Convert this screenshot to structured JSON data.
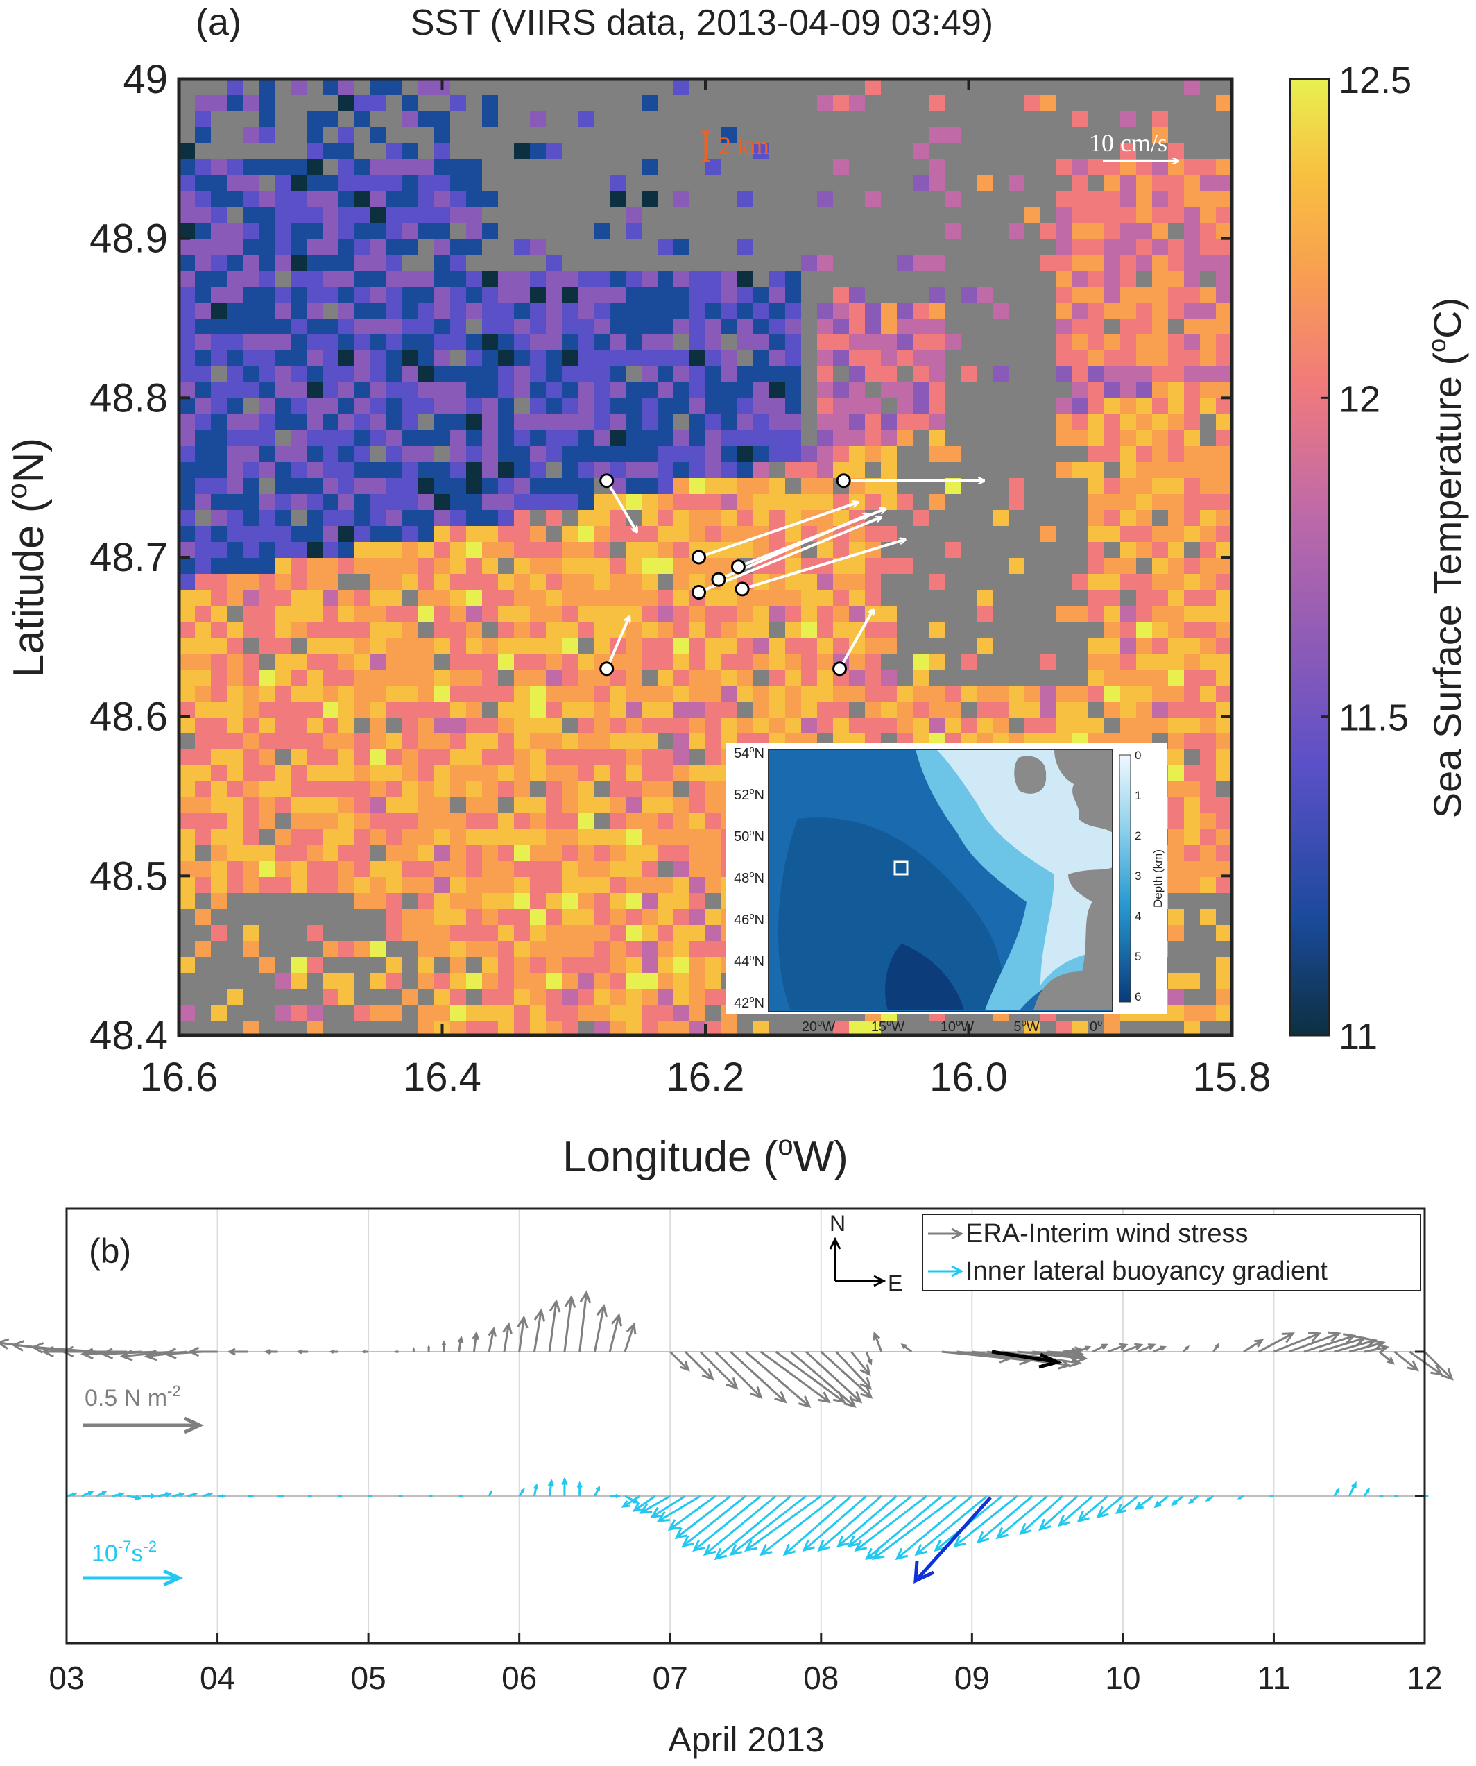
{
  "panel_a": {
    "label": "(a)",
    "title": "SST (VIIRS data, 2013-04-09 03:49)",
    "xlabel": "Longitude (",
    "xlabel_sup": "o",
    "xlabel_end": "W)",
    "ylabel": "Latitude (",
    "ylabel_sup": "o",
    "ylabel_end": "N)",
    "scale_bar_label": "2 km",
    "velocity_scale_label": "10 cm/s",
    "colorbar": {
      "label": "Sea Surface Temperature (",
      "label_sup": "o",
      "label_end": "C)",
      "ticks": [
        "12.5",
        "12",
        "11.5",
        "11"
      ],
      "tick_values": [
        12.5,
        12,
        11.5,
        11
      ],
      "range": [
        11,
        12.5
      ]
    },
    "inset": {
      "lat_labels": [
        "54",
        "52",
        "50",
        "48",
        "46",
        "44",
        "42"
      ],
      "lat_suffix": "N",
      "lon_labels": [
        "20",
        "15",
        "10",
        "5",
        "0"
      ],
      "lon_suffix": "W",
      "depth_ticks": [
        "0",
        "1",
        "2",
        "3",
        "4",
        "5",
        "6"
      ],
      "depth_label": "Depth (km)"
    }
  },
  "panel_b": {
    "label": "(b)",
    "legend": {
      "wind": "ERA-Interim wind stress",
      "buoyancy": "Inner lateral buoyancy gradient",
      "compass_n": "N",
      "compass_e": "E"
    },
    "wind_scale_label": "0.5 N m",
    "wind_scale_sup": "-2",
    "buoy_scale_label": "10",
    "buoy_scale_sup": "-7",
    "buoy_scale_end": "s",
    "buoy_scale_sup2": "-2",
    "xlabel": "April 2013",
    "xticks": [
      "03",
      "04",
      "05",
      "06",
      "07",
      "08",
      "09",
      "10",
      "11",
      "12"
    ]
  },
  "chart_data": [
    {
      "type": "heatmap",
      "title": "SST (VIIRS data, 2013-04-09 03:49)",
      "xlabel": "Longitude (oW)",
      "ylabel": "Latitude (oN)",
      "xlim": [
        16.6,
        15.8
      ],
      "ylim": [
        48.4,
        49.0
      ],
      "xticks": [
        16.6,
        16.4,
        16.2,
        16.0,
        15.8
      ],
      "yticks": [
        48.4,
        48.5,
        48.6,
        48.7,
        48.8,
        48.9,
        49.0
      ],
      "xtick_labels": [
        "16.6",
        "16.4",
        "16.2",
        "16.0",
        "15.8"
      ],
      "ytick_labels": [
        "48.4",
        "48.5",
        "48.6",
        "48.7",
        "48.8",
        "48.9",
        "49"
      ],
      "color_range": [
        11,
        12.5
      ],
      "colormap": [
        "#0d3040",
        "#1a4a9a",
        "#5a50c8",
        "#8a5ab8",
        "#c06aa8",
        "#f07a7c",
        "#f8a050",
        "#f8c040",
        "#e8f050"
      ],
      "missing_color": "#808080",
      "drifters": [
        {
          "lon": 16.275,
          "lat": 48.748,
          "u": 4.0,
          "v": -6.8
        },
        {
          "lon": 16.095,
          "lat": 48.748,
          "u": 18.7,
          "v": 0.0
        },
        {
          "lon": 16.205,
          "lat": 48.7,
          "u": 21.2,
          "v": 7.3
        },
        {
          "lon": 16.19,
          "lat": 48.686,
          "u": 20.0,
          "v": 8.7
        },
        {
          "lon": 16.175,
          "lat": 48.694,
          "u": 19.6,
          "v": 7.7
        },
        {
          "lon": 16.205,
          "lat": 48.678,
          "u": 24.3,
          "v": 10.0
        },
        {
          "lon": 16.172,
          "lat": 48.68,
          "u": 21.7,
          "v": 6.6
        },
        {
          "lon": 16.275,
          "lat": 48.63,
          "u": 3.0,
          "v": 6.9
        },
        {
          "lon": 16.098,
          "lat": 48.63,
          "u": 4.5,
          "v": 7.9
        }
      ]
    },
    {
      "type": "quiver",
      "xlabel": "April 2013",
      "xlim": [
        3,
        12
      ],
      "xtick_labels": [
        "03",
        "04",
        "05",
        "06",
        "07",
        "08",
        "09",
        "10",
        "11",
        "12"
      ],
      "series": [
        {
          "name": "ERA-Interim wind stress",
          "color": "#7f7f7f",
          "scale_value": "0.5 N m-2",
          "times": [
            3.0,
            3.1,
            3.2,
            3.3,
            3.4,
            3.5,
            3.6,
            3.7,
            3.8,
            3.9,
            4.0,
            4.2,
            4.4,
            4.6,
            4.8,
            5.0,
            5.2,
            5.3,
            5.4,
            5.5,
            5.6,
            5.7,
            5.8,
            5.9,
            6.0,
            6.1,
            6.2,
            6.3,
            6.4,
            6.5,
            6.6,
            6.7,
            6.8,
            7.0,
            7.1,
            7.2,
            7.3,
            7.4,
            7.5,
            7.6,
            7.7,
            7.8,
            7.9,
            8.0,
            8.1,
            8.2,
            8.3,
            8.4,
            8.6,
            8.8,
            8.9,
            9.0,
            9.1,
            9.2,
            9.3,
            9.4,
            9.5,
            9.6,
            9.7,
            9.8,
            9.9,
            10.0,
            10.1,
            10.2,
            10.4,
            10.6,
            10.8,
            10.9,
            11.0,
            11.1,
            11.2,
            11.3,
            11.4,
            11.5,
            11.6,
            11.7,
            11.8,
            11.9,
            12.0
          ],
          "u": [
            -0.3,
            -0.3,
            -0.28,
            -0.3,
            -0.28,
            -0.26,
            -0.24,
            -0.22,
            -0.18,
            -0.16,
            -0.12,
            -0.08,
            -0.05,
            -0.04,
            -0.03,
            -0.02,
            -0.01,
            0.0,
            0.0,
            0.0,
            0.01,
            0.01,
            0.02,
            0.02,
            0.02,
            0.03,
            0.03,
            0.03,
            0.03,
            0.04,
            0.04,
            0.04,
            0.0,
            0.08,
            0.12,
            0.16,
            0.2,
            0.24,
            0.28,
            0.3,
            0.3,
            0.28,
            0.24,
            0.22,
            0.15,
            0.08,
            0.02,
            -0.03,
            -0.04,
            0.3,
            0.32,
            0.35,
            0.36,
            0.34,
            0.3,
            0.22,
            0.15,
            0.08,
            0.05,
            0.06,
            0.08,
            0.08,
            0.07,
            0.05,
            0.02,
            0.02,
            0.08,
            0.15,
            0.2,
            0.22,
            0.22,
            0.2,
            0.18,
            0.15,
            0.1,
            0.06,
            0.1,
            0.14,
            0.12
          ],
          "v": [
            0.04,
            0.03,
            0.02,
            0.0,
            0.0,
            -0.01,
            -0.01,
            -0.02,
            -0.02,
            -0.01,
            0.0,
            0.0,
            0.0,
            0.0,
            0.0,
            0.0,
            0.0,
            0.01,
            0.02,
            0.04,
            0.06,
            0.08,
            0.1,
            0.12,
            0.15,
            0.18,
            0.22,
            0.24,
            0.26,
            0.2,
            0.16,
            0.12,
            0.0,
            -0.08,
            -0.12,
            -0.16,
            -0.2,
            -0.22,
            -0.24,
            -0.22,
            -0.22,
            -0.24,
            -0.22,
            -0.2,
            -0.16,
            -0.1,
            -0.05,
            0.08,
            0.03,
            -0.03,
            -0.04,
            -0.05,
            -0.06,
            -0.05,
            -0.03,
            -0.02,
            -0.01,
            0.01,
            0.02,
            0.03,
            0.03,
            0.03,
            0.03,
            0.02,
            0.02,
            0.03,
            0.05,
            0.08,
            0.08,
            0.08,
            0.07,
            0.06,
            0.05,
            0.04,
            0.02,
            -0.05,
            -0.08,
            -0.1,
            -0.12
          ]
        },
        {
          "name": "Inner lateral buoyancy gradient",
          "color": "#22c8f0",
          "scale_value": "10-7 s-2",
          "times": [
            3.0,
            3.1,
            3.2,
            3.3,
            3.4,
            3.5,
            3.6,
            3.7,
            3.8,
            3.9,
            4.0,
            4.2,
            4.4,
            4.6,
            4.8,
            5.0,
            5.2,
            5.4,
            5.6,
            5.8,
            6.0,
            6.1,
            6.2,
            6.3,
            6.4,
            6.5,
            6.6,
            6.7,
            6.8,
            6.9,
            7.0,
            7.1,
            7.2,
            7.3,
            7.4,
            7.5,
            7.6,
            7.7,
            7.8,
            7.9,
            8.0,
            8.1,
            8.2,
            8.3,
            8.4,
            8.5,
            8.6,
            8.7,
            8.8,
            8.9,
            9.0,
            9.1,
            9.2,
            9.3,
            9.4,
            9.5,
            9.6,
            9.7,
            9.8,
            9.9,
            10.0,
            10.1,
            10.2,
            10.3,
            10.4,
            10.5,
            10.6,
            10.8,
            11.0,
            11.2,
            11.4,
            11.5,
            11.6,
            11.7,
            11.8,
            12.0
          ],
          "u": [
            0.04,
            0.05,
            0.04,
            0.05,
            0.06,
            0.06,
            0.06,
            0.05,
            0.04,
            0.04,
            0.03,
            0.02,
            0.02,
            0.01,
            0.01,
            0.01,
            0.01,
            0.01,
            0.01,
            0.01,
            0.02,
            0.01,
            0.01,
            0.0,
            0.0,
            0.02,
            0.04,
            0.06,
            -0.08,
            -0.1,
            -0.14,
            -0.16,
            -0.2,
            -0.22,
            -0.26,
            -0.3,
            -0.32,
            -0.34,
            -0.36,
            -0.36,
            -0.36,
            -0.36,
            -0.32,
            -0.3,
            -0.3,
            -0.28,
            -0.3,
            -0.34,
            -0.36,
            -0.4,
            -0.36,
            -0.34,
            -0.32,
            -0.3,
            -0.26,
            -0.24,
            -0.2,
            -0.18,
            -0.16,
            -0.14,
            -0.12,
            -0.1,
            -0.08,
            -0.06,
            -0.05,
            -0.04,
            -0.03,
            -0.02,
            -0.01,
            0.0,
            0.02,
            0.03,
            0.02,
            0.01,
            0.01,
            0.01
          ],
          "v": [
            0.01,
            0.02,
            0.02,
            0.01,
            -0.01,
            0.0,
            0.01,
            0.01,
            0.01,
            0.01,
            0.0,
            0.0,
            0.0,
            0.0,
            0.0,
            0.0,
            0.0,
            0.0,
            0.0,
            0.02,
            0.03,
            0.05,
            0.07,
            0.08,
            0.06,
            0.04,
            0.0,
            -0.03,
            -0.05,
            -0.07,
            -0.08,
            -0.1,
            -0.12,
            -0.16,
            -0.2,
            -0.24,
            -0.26,
            -0.28,
            -0.3,
            -0.28,
            -0.26,
            -0.28,
            -0.28,
            -0.26,
            -0.26,
            -0.24,
            -0.24,
            -0.26,
            -0.3,
            -0.3,
            -0.3,
            -0.28,
            -0.26,
            -0.24,
            -0.22,
            -0.2,
            -0.18,
            -0.16,
            -0.14,
            -0.12,
            -0.1,
            -0.08,
            -0.06,
            -0.05,
            -0.04,
            -0.03,
            -0.02,
            -0.01,
            0.0,
            0.0,
            0.03,
            0.06,
            0.03,
            0.0,
            0.0,
            0.0
          ]
        }
      ]
    }
  ]
}
